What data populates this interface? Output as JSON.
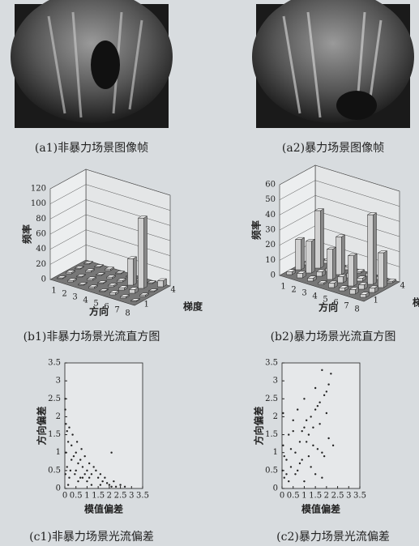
{
  "images": [
    {
      "caption": "(a1)非暴力场景图像帧"
    },
    {
      "caption": "(a2)暴力场景图像帧"
    }
  ],
  "chart_data": [
    {
      "type": "bar3d",
      "caption": "(b1)非暴力场景光流直方图",
      "ylabel": "频率",
      "xlabel": "方向",
      "zlabel": "梯度",
      "categories": [
        "1",
        "2",
        "3",
        "4",
        "5",
        "6",
        "7",
        "8"
      ],
      "z_categories": [
        "1",
        null,
        null,
        "4"
      ],
      "ylim": [
        0,
        120
      ],
      "yticks": [
        0,
        20,
        40,
        60,
        80,
        100,
        120
      ],
      "color": "#d0d0d0",
      "series": [
        {
          "values": [
            1,
            2,
            1,
            2,
            1,
            3,
            2,
            1
          ]
        },
        {
          "values": [
            2,
            1,
            2,
            1,
            2,
            3,
            5,
            2
          ]
        },
        {
          "values": [
            1,
            2,
            1,
            2,
            2,
            35,
            93,
            1
          ]
        },
        {
          "values": [
            1,
            1,
            2,
            1,
            1,
            2,
            1,
            8
          ]
        }
      ]
    },
    {
      "type": "bar3d",
      "caption": "(b2)暴力场景光流直方图",
      "ylabel": "频率",
      "xlabel": "方向",
      "zlabel": "梯度",
      "categories": [
        "1",
        "2",
        "3",
        "4",
        "5",
        "6",
        "7",
        "8"
      ],
      "z_categories": [
        "1",
        null,
        null,
        "4"
      ],
      "ylim": [
        0,
        60
      ],
      "yticks": [
        0,
        10,
        20,
        30,
        40,
        50,
        60
      ],
      "color": "#d0d0d0",
      "series": [
        {
          "values": [
            2,
            3,
            2,
            1,
            3,
            2,
            3,
            2
          ]
        },
        {
          "values": [
            20,
            21,
            3,
            20,
            4,
            20,
            3,
            3
          ]
        },
        {
          "values": [
            2,
            38,
            2,
            25,
            3,
            2,
            46,
            23
          ]
        },
        {
          "values": [
            1,
            2,
            1,
            2,
            1,
            2,
            2,
            1
          ]
        }
      ]
    },
    {
      "type": "scatter",
      "caption": "(c1)非暴力场景光流偏差",
      "xlabel": "模值偏差",
      "ylabel": "方向偏差",
      "xlim": [
        0,
        3.5
      ],
      "xticks": [
        0,
        0.5,
        1,
        1.5,
        2,
        2.5,
        3,
        3.5
      ],
      "ylim": [
        0,
        3.5
      ],
      "yticks": [
        0,
        0.5,
        1,
        1.5,
        2,
        2.5,
        3,
        3.5
      ],
      "color": "#222222",
      "x": [
        0.02,
        0.05,
        0.1,
        0.15,
        0.2,
        0.3,
        0.35,
        0.4,
        0.5,
        0.55,
        0.6,
        0.7,
        0.75,
        0.8,
        0.9,
        1.0,
        1.1,
        1.2,
        1.3,
        1.4,
        1.5,
        1.6,
        1.7,
        1.8,
        1.9,
        2.0,
        2.1,
        2.2,
        2.3,
        2.5,
        2.7,
        0.1,
        0.2,
        0.3,
        0.45,
        0.6,
        0.8,
        1.0,
        1.2,
        0.05,
        0.25,
        0.5,
        0.7,
        0.9,
        1.1,
        1.6,
        2.1,
        0.15,
        0.02,
        0.03
      ],
      "values": [
        2.5,
        1.8,
        1.6,
        1.3,
        1.7,
        1.2,
        1.5,
        0.9,
        1.0,
        1.3,
        0.7,
        0.8,
        1.1,
        0.6,
        0.9,
        0.5,
        0.7,
        0.4,
        0.6,
        0.5,
        0.3,
        0.4,
        0.2,
        0.3,
        0.15,
        0.1,
        1.0,
        0.2,
        0.05,
        0.1,
        0.05,
        0.6,
        0.3,
        0.8,
        0.4,
        0.2,
        0.3,
        0.2,
        0.1,
        1.0,
        0.5,
        0.5,
        0.3,
        0.4,
        0.3,
        0.1,
        0.05,
        0.1,
        2.2,
        0.4
      ]
    },
    {
      "type": "scatter",
      "caption": "(c2)暴力场景光流偏差",
      "xlabel": "模值偏差",
      "ylabel": "方向偏差",
      "xlim": [
        0,
        3.5
      ],
      "xticks": [
        0,
        0.5,
        1,
        1.5,
        2,
        2.5,
        3,
        3.5
      ],
      "ylim": [
        0,
        3.5
      ],
      "yticks": [
        0,
        0.5,
        1,
        1.5,
        2,
        2.5,
        3,
        3.5
      ],
      "color": "#222222",
      "x": [
        0.02,
        0.05,
        0.1,
        0.2,
        0.3,
        0.4,
        0.5,
        0.6,
        0.7,
        0.8,
        0.9,
        1.0,
        1.1,
        1.2,
        1.3,
        1.4,
        1.5,
        1.6,
        1.7,
        1.8,
        1.9,
        2.0,
        2.1,
        2.2,
        1.5,
        1.7,
        1.9,
        2.0,
        1.2,
        1.0,
        0.8,
        0.6,
        0.4,
        0.3,
        0.7,
        1.1,
        1.3,
        1.6,
        1.8,
        2.1,
        0.5,
        0.9,
        1.4,
        0.2,
        0.1,
        1.0,
        1.5,
        2.3,
        1.8,
        0.05
      ],
      "values": [
        0.5,
        1.2,
        0.3,
        0.8,
        1.5,
        0.6,
        1.9,
        1.0,
        2.2,
        0.7,
        1.6,
        2.5,
        1.3,
        0.9,
        2.0,
        1.7,
        2.8,
        1.1,
        2.4,
        3.3,
        2.6,
        2.1,
        1.4,
        3.2,
        0.4,
        1.8,
        0.9,
        2.7,
        1.5,
        0.2,
        1.3,
        0.4,
        1.1,
        0.2,
        0.5,
        1.9,
        0.6,
        2.3,
        1.0,
        2.9,
        1.6,
        0.8,
        1.2,
        0.4,
        0.9,
        1.7,
        2.2,
        1.2,
        0.3,
        2.1
      ]
    }
  ]
}
